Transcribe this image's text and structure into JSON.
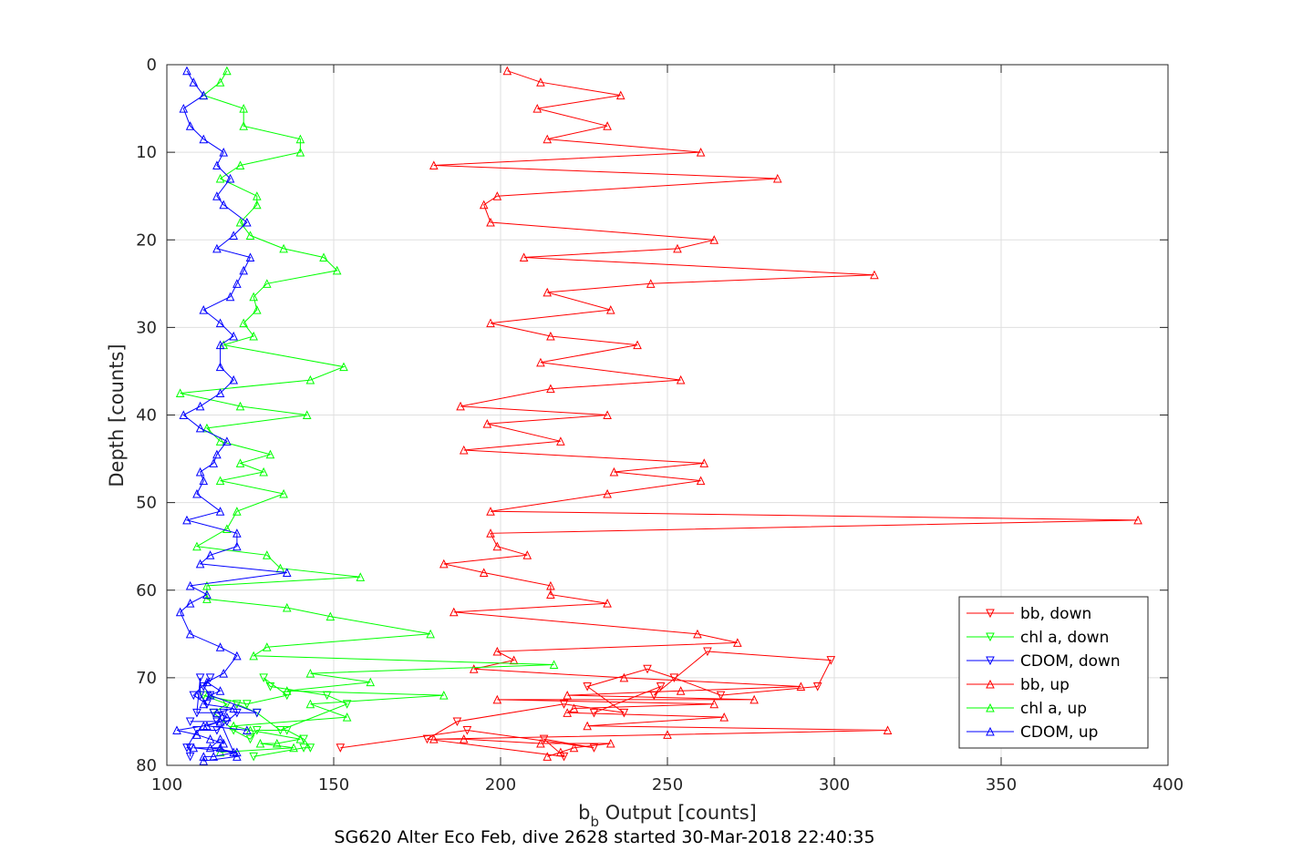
{
  "chart_data": {
    "type": "line",
    "title": "",
    "xlabel_main": "b",
    "xlabel_sub": "b",
    "xlabel_rest": " Output [counts]",
    "ylabel": "Depth [counts]",
    "caption": "SG620 Alter Eco Feb, dive 2628 started 30-Mar-2018 22:40:35",
    "xlim": [
      100,
      400
    ],
    "ylim": [
      0,
      80
    ],
    "y_reversed": true,
    "grid": true,
    "legend_position": "bottom-right",
    "xticks": [
      "100",
      "150",
      "200",
      "250",
      "300",
      "350",
      "400"
    ],
    "yticks": [
      "0",
      "10",
      "20",
      "30",
      "40",
      "50",
      "60",
      "70",
      "80"
    ],
    "series": [
      {
        "name": "bb, down",
        "color": "#ff0000",
        "marker": "down",
        "x": [
          152,
          190,
          228,
          213,
          219,
          178,
          187,
          219,
          237,
          226,
          244,
          252,
          266,
          295,
          299,
          262,
          246,
          248,
          228
        ],
        "y": [
          78,
          76,
          78,
          77,
          79,
          77,
          75,
          73,
          74,
          71,
          69,
          70,
          72,
          71,
          68,
          67,
          72,
          71,
          74
        ]
      },
      {
        "name": "chl a, down",
        "color": "#00ff00",
        "marker": "down",
        "x": [
          126,
          141,
          143,
          141,
          136,
          127,
          125,
          120,
          114,
          118,
          111,
          124,
          136,
          129,
          131,
          148,
          154,
          134,
          127,
          121
        ],
        "y": [
          79,
          78,
          78,
          77,
          76,
          76,
          77,
          76,
          74,
          73,
          72,
          73,
          72,
          70,
          71,
          72,
          73,
          76,
          74,
          73
        ]
      },
      {
        "name": "CDOM, down",
        "color": "#0000ff",
        "marker": "down",
        "x": [
          107,
          107,
          106,
          109,
          115,
          118,
          121,
          127,
          113,
          111,
          113,
          108,
          112,
          110,
          110,
          109,
          114,
          117,
          115,
          107
        ],
        "y": [
          79,
          78,
          78,
          76,
          76,
          75,
          74,
          74,
          72,
          71,
          70,
          72,
          73,
          72,
          70,
          74,
          74,
          74,
          75,
          75
        ]
      },
      {
        "name": "bb, up",
        "color": "#ff0000",
        "marker": "up",
        "x": [
          202,
          212,
          236,
          211,
          232,
          214,
          260,
          180,
          283,
          199,
          195,
          197,
          264,
          253,
          207,
          312,
          245,
          214,
          233,
          197,
          215,
          241,
          212,
          254,
          215,
          188,
          232,
          196,
          218,
          189,
          261,
          234,
          260,
          232,
          197,
          391,
          197,
          199,
          208,
          183,
          195,
          215,
          215,
          232,
          186,
          259,
          271,
          199,
          204,
          192,
          237,
          290,
          254,
          220,
          276,
          199,
          264,
          222,
          220,
          267,
          226,
          316,
          250,
          180,
          189,
          212,
          233,
          222,
          218,
          214
        ],
        "y": [
          0.7,
          2,
          3.5,
          5,
          7,
          8.5,
          10,
          11.5,
          13,
          15,
          16,
          18,
          20,
          21,
          22,
          24,
          25,
          26,
          28,
          29.5,
          31,
          32,
          34,
          36,
          37,
          39,
          40,
          41,
          43,
          44,
          45.5,
          46.5,
          47.5,
          49,
          51,
          52,
          53.5,
          55,
          56,
          57,
          58,
          59.5,
          60.5,
          61.5,
          62.5,
          65,
          66,
          67,
          68,
          69,
          70,
          71,
          71.5,
          72,
          72.5,
          72.5,
          73,
          73.5,
          74,
          74.5,
          75.5,
          76,
          76.5,
          77,
          77,
          77.5,
          77.5,
          78,
          78.5,
          79
        ]
      },
      {
        "name": "chl a, up",
        "color": "#00ff00",
        "marker": "up",
        "x": [
          118,
          116,
          111,
          123,
          123,
          140,
          140,
          122,
          116,
          127,
          127,
          122,
          125,
          135,
          147,
          151,
          130,
          126,
          127,
          123,
          126,
          117,
          153,
          143,
          104,
          122,
          142,
          112,
          116,
          131,
          122,
          129,
          116,
          135,
          121,
          118,
          109,
          130,
          134,
          158,
          112,
          112,
          136,
          149,
          179,
          130,
          126,
          216,
          143,
          161,
          136,
          183,
          143,
          154,
          120,
          125,
          140,
          133,
          128,
          138,
          116
        ],
        "y": [
          0.7,
          2,
          3.5,
          5,
          7,
          8.5,
          10,
          11.5,
          13,
          15,
          16,
          18,
          19.5,
          21,
          22,
          23.5,
          25,
          26.5,
          28,
          29.5,
          31,
          32,
          34.5,
          36,
          37.5,
          39,
          40,
          41.5,
          43,
          44.5,
          45.5,
          46.5,
          47.5,
          49,
          51,
          53,
          55,
          56,
          57.5,
          58.5,
          59.5,
          61,
          62,
          63,
          65,
          66.5,
          67.5,
          68.5,
          69.5,
          70.5,
          71.5,
          72,
          73,
          74.5,
          75.5,
          76,
          77,
          77.5,
          77.5,
          78,
          78.5
        ]
      },
      {
        "name": "CDOM, up",
        "color": "#0000ff",
        "marker": "up",
        "x": [
          106,
          108,
          111,
          105,
          107,
          111,
          117,
          115,
          119,
          115,
          117,
          124,
          120,
          115,
          125,
          123,
          121,
          119,
          111,
          116,
          120,
          116,
          116,
          120,
          116,
          110,
          105,
          110,
          118,
          115,
          114,
          110,
          111,
          109,
          116,
          106,
          121,
          121,
          113,
          110,
          136,
          107,
          112,
          107,
          104,
          107,
          116,
          121,
          117,
          112,
          116,
          113,
          111,
          120,
          115,
          118,
          116,
          111,
          103,
          109,
          113,
          117,
          116,
          113,
          121,
          114,
          111,
          111,
          121,
          116,
          108,
          120,
          116,
          112,
          124
        ],
        "y": [
          0.7,
          2,
          3.5,
          5,
          7,
          8.5,
          10,
          11.5,
          13,
          15,
          16,
          18,
          19.5,
          21,
          22,
          23.5,
          25,
          26.5,
          28,
          29.5,
          31,
          32,
          34.5,
          36,
          37.5,
          39,
          40,
          41.5,
          43,
          44.5,
          45.5,
          46.5,
          47.5,
          49,
          51,
          52,
          53.5,
          55,
          56,
          57,
          58,
          59.5,
          60.5,
          61.5,
          62.5,
          65,
          66.5,
          67.5,
          69.5,
          70.5,
          71.5,
          72,
          73,
          73.5,
          74,
          74.5,
          75,
          75.5,
          76,
          76.5,
          77,
          77.5,
          77,
          78,
          78.5,
          79,
          79,
          79.5,
          79,
          78,
          78,
          78.5,
          75,
          75.5,
          76
        ]
      }
    ]
  }
}
